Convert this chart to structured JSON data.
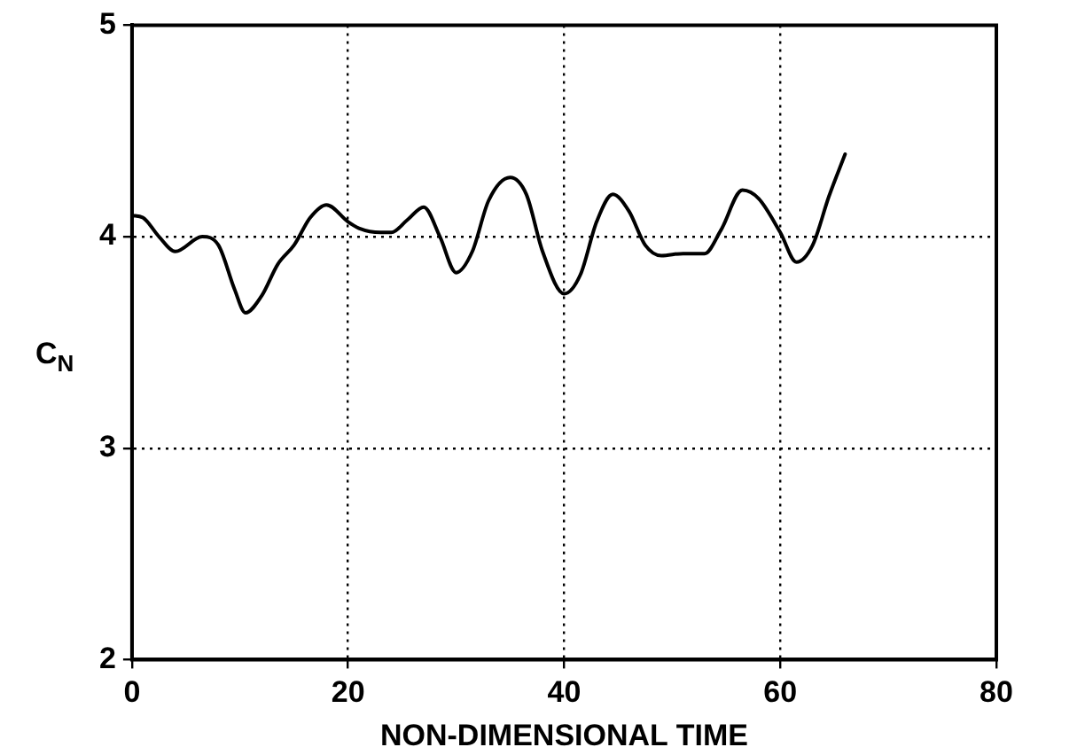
{
  "chart_data": {
    "type": "line",
    "xlabel": "NON-DIMENSIONAL TIME",
    "ylabel": "C$_{N}$",
    "x": [
      0,
      1,
      2.5,
      4,
      6.5,
      8,
      9.5,
      10.5,
      12,
      13.5,
      15,
      16.5,
      18,
      20,
      21,
      23,
      24,
      25.5,
      27,
      28.5,
      30,
      31.5,
      33,
      35,
      36.5,
      38,
      40,
      41.5,
      43,
      44.5,
      46,
      47.5,
      49,
      51,
      53,
      54.5,
      56.5,
      58,
      60,
      61.5,
      63,
      64.5,
      66
    ],
    "series": [
      {
        "color": "#000000",
        "values": [
          4.1,
          4.09,
          4.0,
          3.93,
          4.0,
          3.96,
          3.75,
          3.64,
          3.72,
          3.87,
          3.96,
          4.09,
          4.15,
          4.07,
          4.04,
          4.02,
          4.02,
          4.08,
          4.14,
          4.0,
          3.83,
          3.93,
          4.17,
          4.28,
          4.2,
          3.93,
          3.73,
          3.82,
          4.07,
          4.2,
          4.12,
          3.96,
          3.91,
          3.92,
          3.92,
          4.03,
          4.22,
          4.18,
          4.02,
          3.88,
          3.96,
          4.19,
          4.39
        ]
      }
    ],
    "xlim": [
      0,
      80
    ],
    "xticks": [
      0,
      20,
      40,
      60,
      80
    ],
    "ylim": [
      2,
      5
    ],
    "yticks": [
      2,
      3,
      4,
      5
    ],
    "grid": true,
    "legend": false,
    "marker": "none",
    "line_style": "solid"
  }
}
